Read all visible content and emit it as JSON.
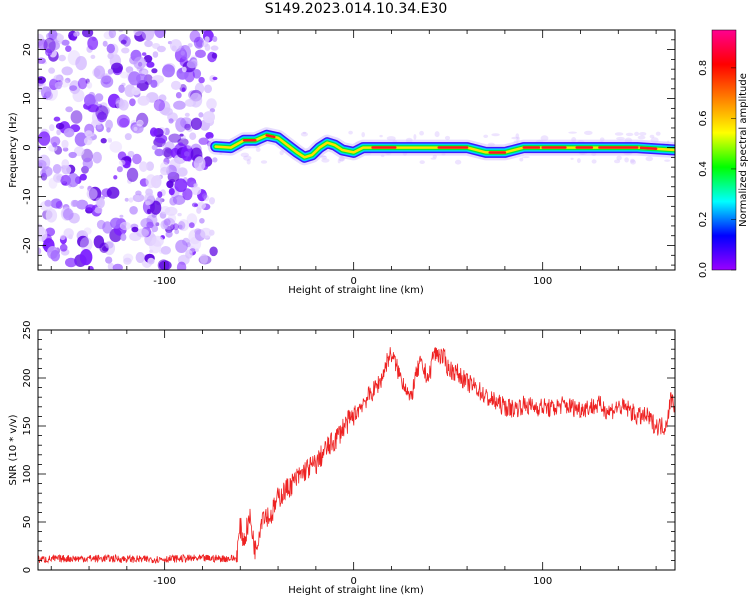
{
  "figure": {
    "title": "S149.2023.014.10.34.E30"
  },
  "chart_data": [
    {
      "type": "heatmap",
      "xlabel": "Height of straight line (km)",
      "ylabel": "Frequency (Hz)",
      "xlim": [
        -167,
        170
      ],
      "ylim": [
        -25,
        24
      ],
      "x_ticks": [
        -100,
        0,
        100
      ],
      "y_ticks": [
        -20,
        -10,
        0,
        10,
        20
      ],
      "grid": false,
      "description_points": {
        "noise_region_x": [
          -167,
          -73
        ],
        "signal_start_x": -73,
        "signal_trace": [
          {
            "x": -73,
            "y": 0.2
          },
          {
            "x": -65,
            "y": 0.0
          },
          {
            "x": -58,
            "y": 1.5
          },
          {
            "x": -52,
            "y": 1.5
          },
          {
            "x": -46,
            "y": 2.5
          },
          {
            "x": -40,
            "y": 2.0
          },
          {
            "x": -35,
            "y": 0.5
          },
          {
            "x": -30,
            "y": -1.0
          },
          {
            "x": -26,
            "y": -2.0
          },
          {
            "x": -22,
            "y": -1.5
          },
          {
            "x": -18,
            "y": 0.0
          },
          {
            "x": -14,
            "y": 1.0
          },
          {
            "x": -10,
            "y": 0.5
          },
          {
            "x": -6,
            "y": -0.5
          },
          {
            "x": 0,
            "y": -1.0
          },
          {
            "x": 5,
            "y": 0.0
          },
          {
            "x": 20,
            "y": 0.0
          },
          {
            "x": 40,
            "y": 0.0
          },
          {
            "x": 60,
            "y": 0.0
          },
          {
            "x": 70,
            "y": -1.0
          },
          {
            "x": 80,
            "y": -1.0
          },
          {
            "x": 90,
            "y": 0.0
          },
          {
            "x": 110,
            "y": 0.0
          },
          {
            "x": 130,
            "y": 0.0
          },
          {
            "x": 150,
            "y": 0.0
          },
          {
            "x": 170,
            "y": -0.5
          }
        ]
      },
      "colorbar": {
        "label": "Normalized spectral amplitude",
        "range": [
          0.0,
          0.95
        ],
        "ticks": [
          "0.0",
          "0.2",
          "0.4",
          "0.6",
          "0.8"
        ],
        "colors": [
          "#9a00ff",
          "#0000ff",
          "#00ffff",
          "#00ff00",
          "#ffff00",
          "#ff8000",
          "#ff0000",
          "#ff0090"
        ]
      }
    },
    {
      "type": "line",
      "xlabel": "Height of straight line (km)",
      "ylabel": "SNR (10 * v/v)",
      "xlim": [
        -167,
        170
      ],
      "ylim": [
        0,
        250
      ],
      "x_ticks": [
        -100,
        0,
        100
      ],
      "y_ticks": [
        0,
        50,
        100,
        150,
        200,
        250
      ],
      "grid": false,
      "series": [
        {
          "color": "#ee2222",
          "x": [
            -167,
            -150,
            -130,
            -110,
            -90,
            -70,
            -62,
            -60,
            -58,
            -55,
            -52,
            -48,
            -44,
            -40,
            -35,
            -30,
            -25,
            -20,
            -15,
            -10,
            -5,
            0,
            5,
            10,
            15,
            18,
            20,
            22,
            25,
            28,
            30,
            32,
            35,
            38,
            40,
            42,
            45,
            48,
            50,
            55,
            60,
            65,
            70,
            75,
            80,
            85,
            90,
            95,
            100,
            105,
            110,
            115,
            120,
            125,
            130,
            135,
            140,
            145,
            150,
            155,
            160,
            165,
            168,
            170
          ],
          "values": [
            11,
            12,
            12,
            11,
            12,
            12,
            12,
            45,
            30,
            55,
            20,
            60,
            55,
            75,
            85,
            95,
            105,
            110,
            125,
            135,
            150,
            160,
            175,
            185,
            200,
            220,
            225,
            215,
            200,
            190,
            175,
            195,
            215,
            205,
            200,
            225,
            225,
            220,
            210,
            205,
            195,
            190,
            180,
            175,
            170,
            168,
            172,
            170,
            170,
            168,
            172,
            170,
            168,
            170,
            172,
            165,
            170,
            168,
            160,
            160,
            150,
            150,
            180,
            170
          ]
        }
      ]
    }
  ]
}
